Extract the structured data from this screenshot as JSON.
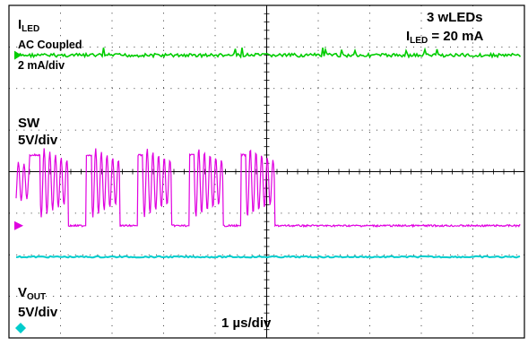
{
  "chart_data": {
    "type": "line",
    "title": "",
    "grid": true,
    "x_divisions": 10,
    "y_divisions": 8,
    "timebase": "1 µs/div",
    "annotation": {
      "line1": "3 wLEDs",
      "line2_main": "I",
      "line2_sub": "LED",
      "line2_rest": " = 20 mA"
    },
    "series": [
      {
        "name": "I",
        "name_sub": "LED",
        "coupling": "AC Coupled",
        "scale": "2 mA/div",
        "color": "#00cc00",
        "waveform": "near-flat noise with small spikes",
        "level_div": 1.2
      },
      {
        "name": "SW",
        "scale": "5V/div",
        "color": "#e000e0",
        "waveform": "switching square wave with ringing",
        "period_us": 1.0,
        "low_level_div": 5.3,
        "high_level_div": 3.6,
        "rising_edges_us": [
          0.4,
          1.5,
          2.5,
          3.5,
          4.5
        ],
        "falling_edges_us": [
          0.6,
          1.6,
          2.6,
          3.6,
          4.6
        ]
      },
      {
        "name": "V",
        "name_sub": "OUT",
        "scale": "5V/div",
        "color": "#00cccc",
        "waveform": "flat DC line",
        "level_div": 6.05
      }
    ]
  },
  "labels": {
    "ch1_name": "I",
    "ch1_sub": "LED",
    "ch1_coupling": "AC Coupled",
    "ch1_scale": "2 mA/div",
    "ch2_name": "SW",
    "ch2_scale": "5V/div",
    "ch3_name": "V",
    "ch3_sub": "OUT",
    "ch3_scale": "5V/div",
    "timebase": "1 µs/div",
    "ann_line1": "3 wLEDs",
    "ann_main": "I",
    "ann_sub": "LED",
    "ann_rest": " = 20 mA"
  }
}
